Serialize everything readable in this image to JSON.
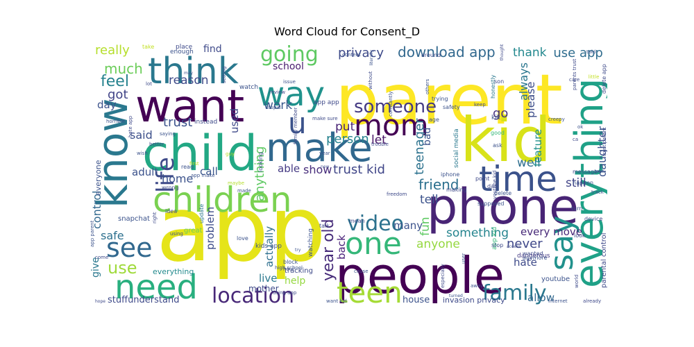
{
  "chart_data": {
    "type": "wordcloud",
    "title": "Word Cloud for Consent_D",
    "colormap": "viridis",
    "background": "#ffffff",
    "words": [
      {
        "text": "app",
        "weight": 100,
        "color": "#e5e419"
      },
      {
        "text": "parent",
        "weight": 90,
        "color": "#fde725"
      },
      {
        "text": "kid",
        "weight": 75,
        "color": "#d8e219"
      },
      {
        "text": "people",
        "weight": 68,
        "color": "#440154"
      },
      {
        "text": "phone",
        "weight": 67,
        "color": "#482475"
      },
      {
        "text": "child",
        "weight": 66,
        "color": "#22a884"
      },
      {
        "text": "want",
        "weight": 64,
        "color": "#440154"
      },
      {
        "text": "know",
        "weight": 62,
        "color": "#2a788e"
      },
      {
        "text": "everything",
        "weight": 60,
        "color": "#1fa187"
      },
      {
        "text": "make",
        "weight": 56,
        "color": "#31688e"
      },
      {
        "text": "children",
        "weight": 55,
        "color": "#7ad151"
      },
      {
        "text": "think",
        "weight": 54,
        "color": "#2a788e"
      },
      {
        "text": "time",
        "weight": 50,
        "color": "#3b528b"
      },
      {
        "text": "say",
        "weight": 49,
        "color": "#21918c"
      },
      {
        "text": "need",
        "weight": 48,
        "color": "#29af7f"
      },
      {
        "text": "way",
        "weight": 46,
        "color": "#20928c"
      },
      {
        "text": "one",
        "weight": 46,
        "color": "#35b779"
      },
      {
        "text": "teen",
        "weight": 45,
        "color": "#a5db36"
      },
      {
        "text": "mom",
        "weight": 44,
        "color": "#440154"
      },
      {
        "text": "see",
        "weight": 40,
        "color": "#31688e"
      },
      {
        "text": "u",
        "weight": 40,
        "color": "#3b528b"
      },
      {
        "text": "location",
        "weight": 36,
        "color": "#482878"
      },
      {
        "text": "life",
        "weight": 35,
        "color": "#3e4a89"
      },
      {
        "text": "going",
        "weight": 34,
        "color": "#5ec962"
      },
      {
        "text": "video",
        "weight": 33,
        "color": "#2c728e"
      },
      {
        "text": "family",
        "weight": 32,
        "color": "#2a788e"
      },
      {
        "text": "someone",
        "weight": 31,
        "color": "#443a83"
      },
      {
        "text": "use",
        "weight": 30,
        "color": "#9fda3a"
      },
      {
        "text": "year old",
        "weight": 28,
        "color": "#472c7a"
      },
      {
        "text": "download app",
        "weight": 27,
        "color": "#31688e"
      },
      {
        "text": "friend",
        "weight": 26,
        "color": "#2d708e"
      },
      {
        "text": "trust kid",
        "weight": 24,
        "color": "#404688"
      },
      {
        "text": "privacy",
        "weight": 23,
        "color": "#3e4a89"
      },
      {
        "text": "feel",
        "weight": 23,
        "color": "#26828e"
      },
      {
        "text": "much",
        "weight": 22,
        "color": "#6ccd5a"
      },
      {
        "text": "really",
        "weight": 21,
        "color": "#b5de2b"
      },
      {
        "text": "use app",
        "weight": 21,
        "color": "#2f6c8e"
      },
      {
        "text": "person",
        "weight": 21,
        "color": "#26828e"
      },
      {
        "text": "anything",
        "weight": 21,
        "color": "#5ec962"
      },
      {
        "text": "control",
        "weight": 20,
        "color": "#31688e"
      },
      {
        "text": "got",
        "weight": 20,
        "color": "#414487"
      },
      {
        "text": "trust",
        "weight": 20,
        "color": "#3b528b"
      },
      {
        "text": "go",
        "weight": 20,
        "color": "#46327e"
      },
      {
        "text": "never",
        "weight": 20,
        "color": "#3f4889"
      },
      {
        "text": "teenager",
        "weight": 19,
        "color": "#2c728e"
      },
      {
        "text": "thank",
        "weight": 19,
        "color": "#23888e"
      },
      {
        "text": "reason",
        "weight": 19,
        "color": "#3e4a89"
      },
      {
        "text": "work",
        "weight": 19,
        "color": "#38588c"
      },
      {
        "text": "anyone",
        "weight": 19,
        "color": "#95d840"
      },
      {
        "text": "something",
        "weight": 19,
        "color": "#25848e"
      },
      {
        "text": "put",
        "weight": 19,
        "color": "#482475"
      },
      {
        "text": "let",
        "weight": 19,
        "color": "#471365"
      },
      {
        "text": "tell",
        "weight": 19,
        "color": "#3b528b"
      },
      {
        "text": "well",
        "weight": 19,
        "color": "#2e6e8e"
      },
      {
        "text": "still",
        "weight": 19,
        "color": "#414487"
      },
      {
        "text": "show",
        "weight": 18,
        "color": "#472d7b"
      },
      {
        "text": "said",
        "weight": 18,
        "color": "#3c4f8a"
      },
      {
        "text": "home",
        "weight": 18,
        "color": "#3b528b"
      },
      {
        "text": "safe",
        "weight": 18,
        "color": "#2d708e"
      },
      {
        "text": "fun",
        "weight": 18,
        "color": "#5ec962"
      },
      {
        "text": "used",
        "weight": 17,
        "color": "#3e4989"
      },
      {
        "text": "please",
        "weight": 17,
        "color": "#3d4e8a"
      },
      {
        "text": "always",
        "weight": 17,
        "color": "#2a768e"
      },
      {
        "text": "daughter",
        "weight": 16,
        "color": "#3b528b"
      },
      {
        "text": "feature",
        "weight": 16,
        "color": "#21908d"
      },
      {
        "text": "problem",
        "weight": 16,
        "color": "#3e4c8a"
      },
      {
        "text": "actually",
        "weight": 16,
        "color": "#2e6f8e"
      },
      {
        "text": "back",
        "weight": 16,
        "color": "#4a227a"
      },
      {
        "text": "many",
        "weight": 16,
        "color": "#3b528b"
      },
      {
        "text": "every move",
        "weight": 16,
        "color": "#472878"
      },
      {
        "text": "live",
        "weight": 16,
        "color": "#2a788e"
      },
      {
        "text": "hate",
        "weight": 16,
        "color": "#3e4a89"
      },
      {
        "text": "allow",
        "weight": 16,
        "color": "#31688e"
      },
      {
        "text": "call",
        "weight": 16,
        "color": "#39568c"
      },
      {
        "text": "able",
        "weight": 15,
        "color": "#443983"
      },
      {
        "text": "adult",
        "weight": 15,
        "color": "#3b528b"
      },
      {
        "text": "school",
        "weight": 15,
        "color": "#481b6d"
      },
      {
        "text": "find",
        "weight": 15,
        "color": "#3e4989"
      },
      {
        "text": "day",
        "weight": 15,
        "color": "#3b528b"
      },
      {
        "text": "help",
        "weight": 14,
        "color": "#95d840"
      },
      {
        "text": "bad",
        "weight": 14,
        "color": "#3b528b"
      },
      {
        "text": "give",
        "weight": 14,
        "color": "#2a788e"
      },
      {
        "text": "stuffunderstand",
        "weight": 14,
        "color": "#3e4a89"
      },
      {
        "text": "house",
        "weight": 13,
        "color": "#3b528b"
      },
      {
        "text": "mother",
        "weight": 13,
        "color": "#3e4a89"
      },
      {
        "text": "everyone",
        "weight": 12,
        "color": "#3b528b"
      },
      {
        "text": "everything",
        "weight": 12,
        "color": "#238a8d"
      },
      {
        "text": "invasion privacy",
        "weight": 11,
        "color": "#3e4a89"
      },
      {
        "text": "youtube",
        "weight": 10,
        "color": "#3b528b"
      },
      {
        "text": "parental control",
        "weight": 10,
        "color": "#3e4989"
      },
      {
        "text": "snapchat",
        "weight": 10,
        "color": "#3b528b"
      },
      {
        "text": "tracking",
        "weight": 10,
        "color": "#3e4a89"
      },
      {
        "text": "great",
        "weight": 10,
        "color": "#6ccd5a"
      },
      {
        "text": "watching",
        "weight": 9,
        "color": "#3b528b"
      },
      {
        "text": "dangerous",
        "weight": 9,
        "color": "#443983"
      },
      {
        "text": "social media",
        "weight": 9,
        "color": "#2a788e"
      },
      {
        "text": "kids app",
        "weight": 9,
        "color": "#3b528b"
      },
      {
        "text": "instead",
        "weight": 9,
        "color": "#3e4a89"
      },
      {
        "text": "kik",
        "weight": 9,
        "color": "#3b528b"
      },
      {
        "text": "app app",
        "weight": 9,
        "color": "#3e4989"
      },
      {
        "text": "app kid",
        "weight": 9,
        "color": "#35b779"
      },
      {
        "text": "watch",
        "weight": 9,
        "color": "#3b528b"
      },
      {
        "text": "place",
        "weight": 9,
        "color": "#3e4a89"
      },
      {
        "text": "enough",
        "weight": 9,
        "color": "#3b528b"
      },
      {
        "text": "take",
        "weight": 8,
        "color": "#c2df23"
      },
      {
        "text": "look",
        "weight": 8,
        "color": "#3e4a89"
      },
      {
        "text": "safety",
        "weight": 8,
        "color": "#3b528b"
      },
      {
        "text": "stop",
        "weight": 8,
        "color": "#3e4a89"
      },
      {
        "text": "good",
        "weight": 8,
        "color": "#35b779"
      },
      {
        "text": "ask",
        "weight": 8,
        "color": "#3b528b"
      },
      {
        "text": "wanted",
        "weight": 8,
        "color": "#3e4a89"
      },
      {
        "text": "anymore",
        "weight": 8,
        "color": "#3b528b"
      },
      {
        "text": "message",
        "weight": 8,
        "color": "#3e4989"
      },
      {
        "text": "turn",
        "weight": 8,
        "color": "#3b528b"
      },
      {
        "text": "device",
        "weight": 8,
        "color": "#3e4a89"
      },
      {
        "text": "trying",
        "weight": 8,
        "color": "#3b528b"
      },
      {
        "text": "honestly",
        "weight": 8,
        "color": "#2a788e"
      },
      {
        "text": "delete app",
        "weight": 8,
        "color": "#3e4a89"
      },
      {
        "text": "love",
        "weight": 8,
        "color": "#3b528b"
      },
      {
        "text": "mean",
        "weight": 8,
        "color": "#3e4a89"
      },
      {
        "text": "block",
        "weight": 8,
        "color": "#3b528b"
      },
      {
        "text": "idea",
        "weight": 8,
        "color": "#3e4989"
      },
      {
        "text": "read",
        "weight": 8,
        "color": "#3b528b"
      },
      {
        "text": "wrong",
        "weight": 8,
        "color": "#3e4a89"
      },
      {
        "text": "update",
        "weight": 8,
        "color": "#2a788e"
      },
      {
        "text": "looking",
        "weight": 8,
        "color": "#3b528b"
      },
      {
        "text": "talk",
        "weight": 8,
        "color": "#3e4a89"
      },
      {
        "text": "happen",
        "weight": 8,
        "color": "#3b528b"
      },
      {
        "text": "point",
        "weight": 8,
        "color": "#3e4989"
      },
      {
        "text": "delete",
        "weight": 8,
        "color": "#3b528b"
      },
      {
        "text": "dad",
        "weight": 8,
        "color": "#3e4a89"
      },
      {
        "text": "supposed",
        "weight": 8,
        "color": "#3b528b"
      },
      {
        "text": "making",
        "weight": 8,
        "color": "#3e4a89"
      },
      {
        "text": "iphone",
        "weight": 8,
        "color": "#3b528b"
      },
      {
        "text": "son",
        "weight": 8,
        "color": "#3e4989"
      },
      {
        "text": "age",
        "weight": 8,
        "color": "#3b528b"
      },
      {
        "text": "around",
        "weight": 8,
        "color": "#3e4a89"
      },
      {
        "text": "content",
        "weight": 7,
        "color": "#3b528b"
      },
      {
        "text": "without",
        "weight": 7,
        "color": "#3e4a89"
      },
      {
        "text": "others",
        "weight": 7,
        "color": "#3b528b"
      },
      {
        "text": "review",
        "weight": 7,
        "color": "#3e4989"
      },
      {
        "text": "stupid",
        "weight": 7,
        "color": "#3b528b"
      },
      {
        "text": "make sure",
        "weight": 7,
        "color": "#3e4a89"
      },
      {
        "text": "issue",
        "weight": 7,
        "color": "#3b528b"
      },
      {
        "text": "setting",
        "weight": 7,
        "color": "#3e4a89"
      },
      {
        "text": "saying",
        "weight": 7,
        "color": "#3b528b"
      },
      {
        "text": "better",
        "weight": 7,
        "color": "#3e4989"
      },
      {
        "text": "wish",
        "weight": 7,
        "color": "#3b528b"
      },
      {
        "text": "hate app",
        "weight": 7,
        "color": "#3e4a89"
      },
      {
        "text": "horrible",
        "weight": 7,
        "color": "#3b528b"
      },
      {
        "text": "lot",
        "weight": 7,
        "color": "#3e4a89"
      },
      {
        "text": "made",
        "weight": 7,
        "color": "#3b528b"
      },
      {
        "text": "maybe",
        "weight": 7,
        "color": "#b5de2b"
      },
      {
        "text": "app make",
        "weight": 7,
        "color": "#3b528b"
      },
      {
        "text": "family member",
        "weight": 7,
        "color": "#3e4a89"
      },
      {
        "text": "year",
        "weight": 7,
        "color": "#3b528b"
      },
      {
        "text": "trouble",
        "weight": 7,
        "color": "#3e4989"
      },
      {
        "text": "constantly",
        "weight": 7,
        "color": "#3b528b"
      },
      {
        "text": "freedom",
        "weight": 7,
        "color": "#3e4a89"
      },
      {
        "text": "cause",
        "weight": 7,
        "color": "#3b528b"
      },
      {
        "text": "hour",
        "weight": 7,
        "color": "#3e4a89"
      },
      {
        "text": "high school",
        "weight": 7,
        "color": "#3b528b"
      },
      {
        "text": "using app",
        "weight": 7,
        "color": "#3e4989"
      },
      {
        "text": "want kid",
        "weight": 7,
        "color": "#3b528b"
      },
      {
        "text": "come",
        "weight": 7,
        "color": "#3e4a89"
      },
      {
        "text": "app parent",
        "weight": 7,
        "color": "#3b528b"
      },
      {
        "text": "right",
        "weight": 7,
        "color": "#3e4a89"
      },
      {
        "text": "guy",
        "weight": 7,
        "color": "#b5de2b"
      },
      {
        "text": "first",
        "weight": 7,
        "color": "#c2df23"
      },
      {
        "text": "using",
        "weight": 7,
        "color": "#3b528b"
      },
      {
        "text": "keep",
        "weight": 7,
        "color": "#3e4989"
      },
      {
        "text": "creepy",
        "weight": 7,
        "color": "#3b528b"
      },
      {
        "text": "care",
        "weight": 7,
        "color": "#3e4a89"
      },
      {
        "text": "told",
        "weight": 7,
        "color": "#3b528b"
      },
      {
        "text": "parents trust",
        "weight": 7,
        "color": "#3e4a89"
      },
      {
        "text": "little",
        "weight": 7,
        "color": "#c2df23"
      },
      {
        "text": "ok",
        "weight": 7,
        "color": "#3b528b"
      },
      {
        "text": "ca",
        "weight": 7,
        "color": "#3e4989"
      },
      {
        "text": "text",
        "weight": 7,
        "color": "#3b528b"
      },
      {
        "text": "trust parent",
        "weight": 7,
        "color": "#3e4a89"
      },
      {
        "text": "track",
        "weight": 7,
        "color": "#3b528b"
      },
      {
        "text": "world",
        "weight": 7,
        "color": "#3e4a89"
      },
      {
        "text": "internet",
        "weight": 7,
        "color": "#3b528b"
      },
      {
        "text": "already",
        "weight": 7,
        "color": "#3e4989"
      },
      {
        "text": "away",
        "weight": 7,
        "color": "#3b528b"
      },
      {
        "text": "especially",
        "weight": 7,
        "color": "#3e4a89"
      },
      {
        "text": "user",
        "weight": 7,
        "color": "#3b528b"
      },
      {
        "text": "youtube kid",
        "weight": 7,
        "color": "#3e4a89"
      },
      {
        "text": "literally",
        "weight": 6,
        "color": "#3b528b"
      },
      {
        "text": "thought",
        "weight": 6,
        "color": "#3e4989"
      },
      {
        "text": "may",
        "weight": 6,
        "color": "#3b528b"
      },
      {
        "text": "new",
        "weight": 6,
        "color": "#3e4a89"
      },
      {
        "text": "try",
        "weight": 6,
        "color": "#3b528b"
      },
      {
        "text": "access",
        "weight": 6,
        "color": "#3e4a89"
      },
      {
        "text": "turned",
        "weight": 6,
        "color": "#3b528b"
      },
      {
        "text": "hope",
        "weight": 6,
        "color": "#3e4989"
      }
    ]
  }
}
